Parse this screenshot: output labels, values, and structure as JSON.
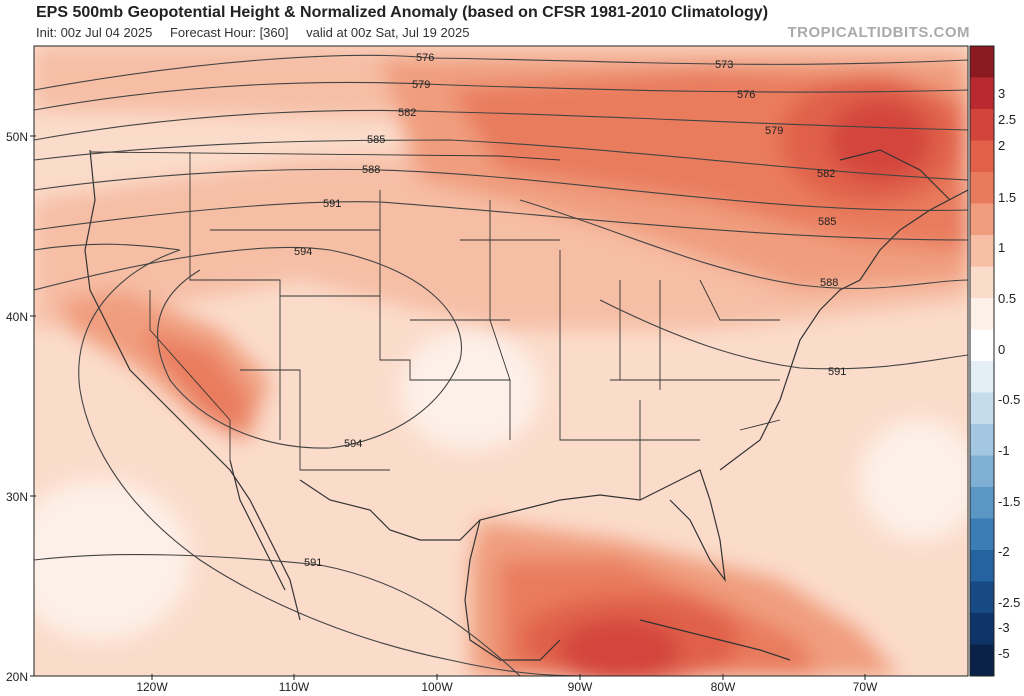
{
  "header": {
    "title": "EPS 500mb Geopotential Height & Normalized Anomaly (based on CFSR 1981-2010 Climatology)",
    "init": "Init: 00z Jul 04 2025",
    "forecast_hour": "Forecast Hour: [360]",
    "valid": "valid at 00z Sat, Jul 19 2025",
    "credit": "TROPICALTIDBITS.COM"
  },
  "axes": {
    "lat_labels": [
      "50N",
      "40N",
      "30N",
      "20N"
    ],
    "lon_labels": [
      "120W",
      "110W",
      "100W",
      "90W",
      "80W",
      "70W"
    ]
  },
  "colorbar": {
    "labels": [
      "3",
      "2.5",
      "2",
      "1.5",
      "1",
      "0.5",
      "0",
      "-0.5",
      "-1",
      "-1.5",
      "-2",
      "-2.5",
      "-3",
      "-5"
    ],
    "colors": [
      "#8b1a20",
      "#b82a2f",
      "#d3443d",
      "#e06048",
      "#e97b5d",
      "#f09d7e",
      "#f6bea5",
      "#fbdccb",
      "#fdf0e8",
      "#ffffff",
      "#e3eef5",
      "#c5dcec",
      "#a3c7e0",
      "#7fb0d3",
      "#5a97c5",
      "#3b7db5",
      "#2563a0",
      "#174a85",
      "#0f3467",
      "#0a2248"
    ]
  },
  "contours": [
    {
      "label": "576"
    },
    {
      "label": "579"
    },
    {
      "label": "582"
    },
    {
      "label": "585"
    },
    {
      "label": "588"
    },
    {
      "label": "591"
    },
    {
      "label": "594"
    },
    {
      "label": "573"
    },
    {
      "label": "576"
    },
    {
      "label": "579"
    },
    {
      "label": "582"
    },
    {
      "label": "585"
    },
    {
      "label": "588"
    },
    {
      "label": "591"
    },
    {
      "label": "594"
    },
    {
      "label": "591"
    }
  ]
}
